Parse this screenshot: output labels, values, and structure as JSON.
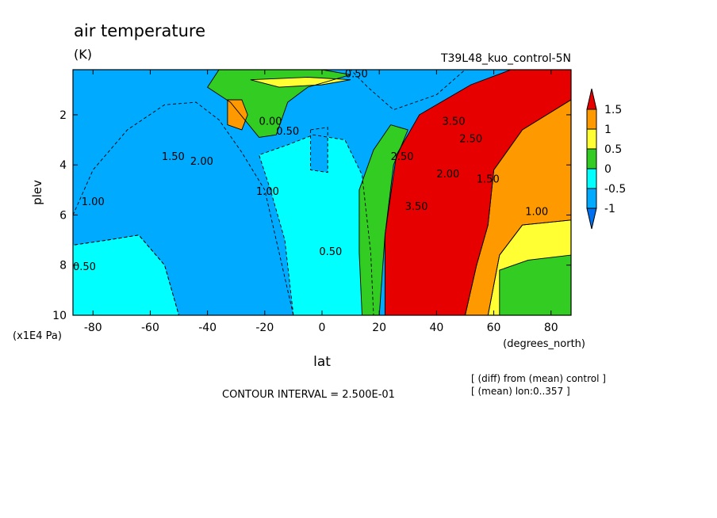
{
  "chart_data": {
    "type": "heatmap",
    "title": "air temperature",
    "units": "(K)",
    "run_label": "T39L48_kuo_control-5N",
    "xlabel": "lat",
    "x_units": "(degrees_north)",
    "ylabel": "plev",
    "y_units": "(x1E4 Pa)",
    "xlim": [
      -87,
      87
    ],
    "ylim": [
      10,
      0.2
    ],
    "x_ticks": [
      "-80",
      "-60",
      "-40",
      "-20",
      "0",
      "20",
      "40",
      "60",
      "80"
    ],
    "x_tick_values": [
      -80,
      -60,
      -40,
      -20,
      0,
      20,
      40,
      60,
      80
    ],
    "y_ticks": [
      "2",
      "4",
      "6",
      "8",
      "10"
    ],
    "y_tick_values": [
      2,
      4,
      6,
      8,
      10
    ],
    "colorbar": {
      "labels": [
        "1.5",
        "1",
        "0.5",
        "0",
        "-0.5",
        "-1"
      ],
      "label_values": [
        1.5,
        1,
        0.5,
        0,
        -0.5,
        -1
      ],
      "colors": [
        "#e60000",
        "#ff9900",
        "#ffff33",
        "#33cc22",
        "#00ffff",
        "#00aaff",
        "#0070ee"
      ],
      "bounds": [
        1.5,
        1.0,
        0.5,
        0.0,
        -0.5,
        -1.0
      ]
    },
    "contour_labels": [
      {
        "text": "1.00",
        "lat": -80,
        "plev": 5.6
      },
      {
        "text": "0.50",
        "lat": -83,
        "plev": 8.2
      },
      {
        "text": "1.50",
        "lat": -52,
        "plev": 3.8
      },
      {
        "text": "2.00",
        "lat": -42,
        "plev": 4.0
      },
      {
        "text": "1.00",
        "lat": -19,
        "plev": 5.2
      },
      {
        "text": "0.00",
        "lat": -18,
        "plev": 2.4
      },
      {
        "text": "0.50",
        "lat": -12,
        "plev": 2.8
      },
      {
        "text": "0.50",
        "lat": 3,
        "plev": 7.6
      },
      {
        "text": "0.50",
        "lat": 12,
        "plev": 0.5
      },
      {
        "text": "3.50",
        "lat": 46,
        "plev": 2.4
      },
      {
        "text": "2.50",
        "lat": 52,
        "plev": 3.1
      },
      {
        "text": "2.50",
        "lat": 28,
        "plev": 3.8
      },
      {
        "text": "2.00",
        "lat": 44,
        "plev": 4.5
      },
      {
        "text": "1.50",
        "lat": 58,
        "plev": 4.7
      },
      {
        "text": "3.50",
        "lat": 33,
        "plev": 5.8
      },
      {
        "text": "1.00",
        "lat": 75,
        "plev": 6.0
      }
    ],
    "regions": [
      {
        "name": "southern-polar-lowlevel",
        "level": -0.5,
        "points": [
          [
            -87,
            10
          ],
          [
            -87,
            7.2
          ],
          [
            -75,
            7.0
          ],
          [
            -64,
            6.8
          ],
          [
            -55,
            8.0
          ],
          [
            -50,
            10
          ]
        ]
      },
      {
        "name": "southern-midlat-core",
        "level": -1.0,
        "points": [
          [
            -87,
            6.0
          ],
          [
            -80,
            4.2
          ],
          [
            -68,
            2.6
          ],
          [
            -55,
            1.6
          ],
          [
            -44,
            1.5
          ],
          [
            -36,
            2.2
          ],
          [
            -28,
            3.5
          ],
          [
            -20,
            5.0
          ],
          [
            -15,
            7.5
          ],
          [
            -10,
            10
          ],
          [
            -50,
            10
          ],
          [
            -55,
            8.0
          ],
          [
            -64,
            6.8
          ],
          [
            -75,
            7.0
          ],
          [
            -87,
            7.2
          ]
        ]
      },
      {
        "name": "equatorial-low",
        "level": -0.5,
        "points": [
          [
            -10,
            10
          ],
          [
            -13,
            7.0
          ],
          [
            -18,
            5.0
          ],
          [
            -22,
            3.6
          ],
          [
            -12,
            3.2
          ],
          [
            -3,
            2.8
          ],
          [
            8,
            3.0
          ],
          [
            14,
            4.4
          ],
          [
            17,
            7.5
          ],
          [
            18,
            10
          ]
        ]
      },
      {
        "name": "equator-pocket",
        "level": -1.0,
        "points": [
          [
            -4,
            2.6
          ],
          [
            2,
            2.5
          ],
          [
            2,
            4.3
          ],
          [
            -4,
            4.2
          ]
        ]
      },
      {
        "name": "subtropical-upper-green",
        "level": 0.25,
        "points": [
          [
            -36,
            0.2
          ],
          [
            0,
            0.2
          ],
          [
            10,
            0.4
          ],
          [
            -5,
            0.9
          ],
          [
            -12,
            1.5
          ],
          [
            -16,
            2.8
          ],
          [
            -22,
            2.9
          ],
          [
            -32,
            1.5
          ],
          [
            -40,
            0.9
          ]
        ]
      },
      {
        "name": "subtropical-upper-yellow",
        "level": 0.75,
        "points": [
          [
            -25,
            0.6
          ],
          [
            -5,
            0.5
          ],
          [
            10,
            0.6
          ],
          [
            0,
            0.8
          ],
          [
            -15,
            0.9
          ]
        ]
      },
      {
        "name": "subtropical-upper-orange",
        "level": 1.25,
        "points": [
          [
            -33,
            1.4
          ],
          [
            -28,
            1.4
          ],
          [
            -26,
            2.0
          ],
          [
            -28,
            2.6
          ],
          [
            -33,
            2.4
          ]
        ]
      },
      {
        "name": "north-transition",
        "level": 0.25,
        "points": [
          [
            20,
            10
          ],
          [
            14,
            10
          ],
          [
            13,
            7.5
          ],
          [
            13,
            5.0
          ],
          [
            18,
            3.4
          ],
          [
            24,
            2.4
          ],
          [
            30,
            2.6
          ],
          [
            25,
            4.0
          ],
          [
            22,
            6.8
          ]
        ]
      },
      {
        "name": "north-warm",
        "level": 1.75,
        "points": [
          [
            22,
            10
          ],
          [
            22,
            6.8
          ],
          [
            26,
            3.6
          ],
          [
            34,
            2.0
          ],
          [
            52,
            0.8
          ],
          [
            66,
            0.2
          ],
          [
            87,
            0.2
          ],
          [
            87,
            1.4
          ],
          [
            70,
            2.6
          ],
          [
            60,
            4.2
          ],
          [
            58,
            6.4
          ],
          [
            54,
            8.0
          ],
          [
            50,
            10
          ]
        ]
      },
      {
        "name": "north-orange",
        "level": 1.25,
        "points": [
          [
            50,
            10
          ],
          [
            54,
            8.0
          ],
          [
            58,
            6.4
          ],
          [
            60,
            4.2
          ],
          [
            70,
            2.6
          ],
          [
            87,
            1.4
          ],
          [
            87,
            6.2
          ],
          [
            70,
            6.4
          ],
          [
            62,
            7.6
          ],
          [
            58,
            10
          ]
        ]
      },
      {
        "name": "north-yellow",
        "level": 0.75,
        "points": [
          [
            58,
            10
          ],
          [
            62,
            7.6
          ],
          [
            70,
            6.4
          ],
          [
            87,
            6.2
          ],
          [
            87,
            10
          ]
        ]
      },
      {
        "name": "north-green-pool",
        "level": 0.25,
        "points": [
          [
            62,
            8.2
          ],
          [
            72,
            7.8
          ],
          [
            87,
            7.6
          ],
          [
            87,
            10
          ],
          [
            62,
            10
          ]
        ]
      },
      {
        "name": "upper-dark-blue-strip",
        "level": -1.0,
        "points": [
          [
            10,
            0.2
          ],
          [
            50,
            0.2
          ],
          [
            40,
            1.2
          ],
          [
            25,
            1.8
          ],
          [
            16,
            0.9
          ]
        ]
      }
    ]
  },
  "notes": {
    "contour_interval": "CONTOUR INTERVAL = 2.500E-01",
    "diff_line": "[ (diff) from (mean) control ]",
    "mean_line": "[ (mean) lon:0..357 ]"
  }
}
